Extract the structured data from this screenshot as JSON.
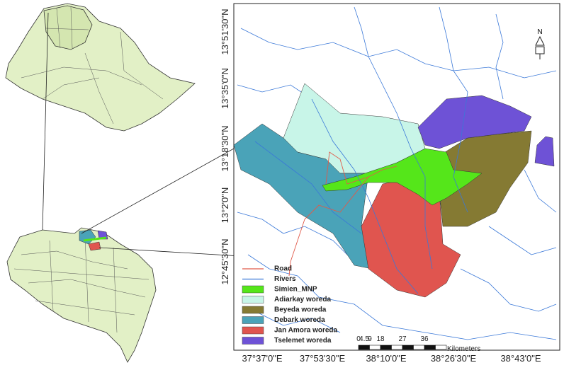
{
  "map": {
    "north": "N",
    "y_labels": [
      "13°51'30\"N",
      "13°35'0\"N",
      "13°18'30\"N",
      "13°2'0\"N",
      "12°45'30\"N"
    ],
    "x_labels": [
      "37°37'0\"E",
      "37°53'30\"E",
      "38°10'0\"E",
      "38°26'30\"E",
      "38°43'0\"E"
    ],
    "legend": [
      {
        "label": "Road",
        "color": "#e05a4a",
        "symbol": "line"
      },
      {
        "label": "Rivers",
        "color": "#3a78d8",
        "symbol": "line"
      },
      {
        "label": "Simien_MNP",
        "color": "#55e61a",
        "symbol": "box"
      },
      {
        "label": "Adiarkay woreda",
        "color": "#c8f5e8",
        "symbol": "box"
      },
      {
        "label": "Beyeda woreda",
        "color": "#857a33",
        "symbol": "box"
      },
      {
        "label": "Debark woreda",
        "color": "#4aa3b8",
        "symbol": "box"
      },
      {
        "label": "Jan Amora woreda",
        "color": "#e0554f",
        "symbol": "box"
      },
      {
        "label": "Tselemet woreda",
        "color": "#6e52d6",
        "symbol": "box"
      }
    ],
    "scale_bar": {
      "ticks": [
        "0",
        "4.5",
        "9",
        "18",
        "27",
        "36"
      ],
      "unit": "Kilometers"
    }
  }
}
